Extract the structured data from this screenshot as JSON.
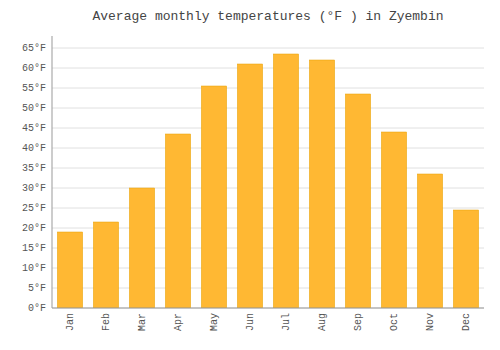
{
  "chart_data": {
    "type": "bar",
    "title": "Average monthly temperatures (°F ) in Zyembin",
    "categories": [
      "Jan",
      "Feb",
      "Mar",
      "Apr",
      "May",
      "Jun",
      "Jul",
      "Aug",
      "Sep",
      "Oct",
      "Nov",
      "Dec"
    ],
    "values": [
      19,
      21.5,
      30,
      43.5,
      55.5,
      61,
      63.5,
      62,
      53.5,
      44,
      33.5,
      24.5
    ],
    "color": "#FFB833",
    "ylim": [
      0,
      68
    ],
    "yticks": [
      {
        "value": 0,
        "label": "0°F"
      },
      {
        "value": 5,
        "label": "5°F"
      },
      {
        "value": 10,
        "label": "10°F"
      },
      {
        "value": 15,
        "label": "15°F"
      },
      {
        "value": 20,
        "label": "20°F"
      },
      {
        "value": 25,
        "label": "25°F"
      },
      {
        "value": 30,
        "label": "30°F"
      },
      {
        "value": 35,
        "label": "35°F"
      },
      {
        "value": 40,
        "label": "40°F"
      },
      {
        "value": 45,
        "label": "45°F"
      },
      {
        "value": 50,
        "label": "50°F"
      },
      {
        "value": 55,
        "label": "55°F"
      },
      {
        "value": 60,
        "label": "60°F"
      },
      {
        "value": 65,
        "label": "65°F"
      }
    ],
    "grid": true
  }
}
